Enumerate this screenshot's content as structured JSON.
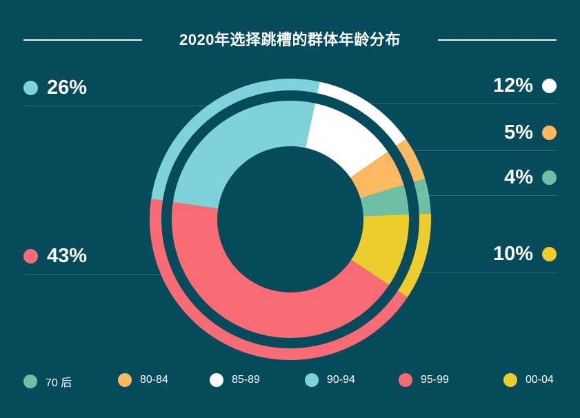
{
  "chart_data": {
    "type": "pie",
    "style": "donut",
    "title": "2020年选择跳槽的群体年龄分布",
    "legend_position": "bottom",
    "slices": [
      {
        "label": "85-89",
        "value": 12,
        "display": "12%",
        "color": "#ffffff"
      },
      {
        "label": "80-84",
        "value": 5,
        "display": "5%",
        "color": "#fbb961"
      },
      {
        "label": "70 后",
        "value": 4,
        "display": "4%",
        "color": "#6dbfa6"
      },
      {
        "label": "00-04",
        "value": 10,
        "display": "10%",
        "color": "#edcc2e"
      },
      {
        "label": "95-99",
        "value": 43,
        "display": "43%",
        "color": "#f96b75"
      },
      {
        "label": "90-94",
        "value": 26,
        "display": "26%",
        "color": "#7dd3d9"
      }
    ],
    "legend_order": [
      "70 后",
      "80-84",
      "85-89",
      "90-94",
      "95-99",
      "00-04"
    ]
  },
  "background_color": "#064b5b"
}
